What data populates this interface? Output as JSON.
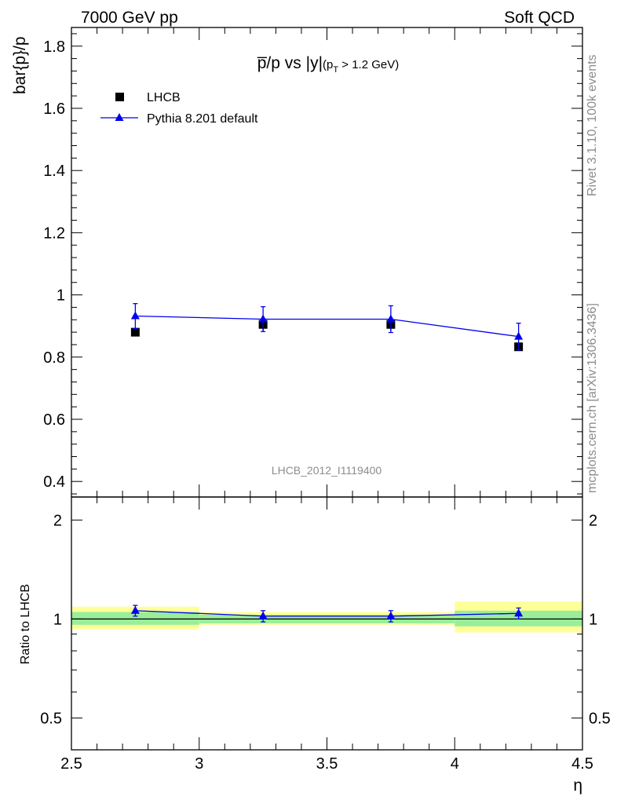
{
  "header": {
    "left": "7000 GeV pp",
    "right": "Soft QCD"
  },
  "side_text": {
    "top": "Rivet 3.1.10,  100k events",
    "bottom": "mcplots.cern.ch [arXiv:1306.3436]"
  },
  "watermark": "LHCB_2012_I1119400",
  "colors": {
    "mc": "#0000ee",
    "data": "#000000",
    "band_inner": "#99ee99",
    "band_outer": "#ffff99"
  },
  "chart_data": [
    {
      "type": "scatter",
      "panel": "main",
      "title_parts": {
        "main": "p̅/p vs |y|",
        "cut_open": "(p",
        "cut_sub": "T",
        "cut_rest": " > 1.2 GeV)"
      },
      "ylabel": "bar{p}/p",
      "xlim": [
        2.5,
        4.5
      ],
      "ylim": [
        0.35,
        1.86
      ],
      "y_ticks": [
        "0.4",
        "0.6",
        "0.8",
        "1",
        "1.2",
        "1.4",
        "1.6",
        "1.8"
      ],
      "grid": false,
      "legend_position": "top-left",
      "x": [
        2.75,
        3.25,
        3.75,
        4.25
      ],
      "series": [
        {
          "name": "LHCB",
          "values": [
            0.88,
            0.905,
            0.905,
            0.833
          ],
          "errors": [
            0.01,
            0.02,
            0.02,
            0.008
          ]
        },
        {
          "name": "Pythia 8.201 default",
          "values": [
            0.932,
            0.922,
            0.922,
            0.866
          ],
          "errors": [
            0.04,
            0.04,
            0.043,
            0.043
          ]
        }
      ]
    },
    {
      "type": "scatter",
      "panel": "ratio",
      "ylabel": "Ratio to LHCB",
      "xlabel": "η",
      "xlim": [
        2.5,
        4.5
      ],
      "ylim": [
        0.4,
        2.35
      ],
      "log_y": true,
      "y_ticks": [
        "0.5",
        "1",
        "2"
      ],
      "x_ticks": [
        "2.5",
        "3",
        "3.5",
        "4",
        "4.5"
      ],
      "bins": [
        [
          2.5,
          3.0
        ],
        [
          3.0,
          3.5
        ],
        [
          3.5,
          4.0
        ],
        [
          4.0,
          4.5
        ]
      ],
      "band_inner": [
        [
          0.96,
          1.05
        ],
        [
          0.97,
          1.03
        ],
        [
          0.97,
          1.03
        ],
        [
          0.95,
          1.06
        ]
      ],
      "band_outer": [
        [
          0.93,
          1.09
        ],
        [
          0.96,
          1.05
        ],
        [
          0.96,
          1.05
        ],
        [
          0.91,
          1.13
        ]
      ],
      "x": [
        2.75,
        3.25,
        3.75,
        4.25
      ],
      "series": [
        {
          "name": "Pythia 8.201 default",
          "values": [
            1.06,
            1.02,
            1.02,
            1.04
          ],
          "errors": [
            0.04,
            0.04,
            0.04,
            0.04
          ]
        }
      ]
    }
  ]
}
